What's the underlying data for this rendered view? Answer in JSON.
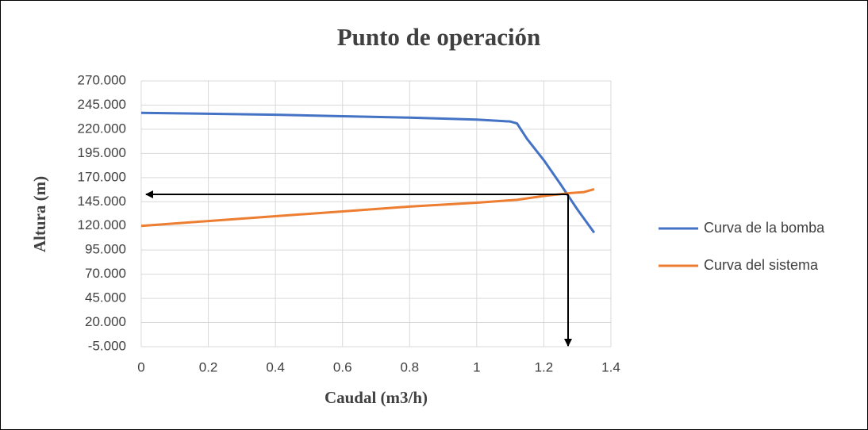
{
  "chart_data": {
    "type": "line",
    "title": "Punto de operación",
    "xlabel": "Caudal (m3/h)",
    "ylabel": "Altura (m)",
    "xlim": [
      0,
      1.4
    ],
    "xticks": [
      0,
      0.2,
      0.4,
      0.6,
      0.8,
      1,
      1.2,
      1.4
    ],
    "ylim": [
      -5,
      270
    ],
    "yticks": [
      {
        "value": -5,
        "label": "-5.000"
      },
      {
        "value": 20,
        "label": "20.000"
      },
      {
        "value": 45,
        "label": "45.000"
      },
      {
        "value": 70,
        "label": "70.000"
      },
      {
        "value": 95,
        "label": "95.000"
      },
      {
        "value": 120,
        "label": "120.000"
      },
      {
        "value": 145,
        "label": "145.000"
      },
      {
        "value": 170,
        "label": "170.000"
      },
      {
        "value": 195,
        "label": "195.000"
      },
      {
        "value": 220,
        "label": "220.000"
      },
      {
        "value": 245,
        "label": "245.000"
      },
      {
        "value": 270,
        "label": "270.000"
      }
    ],
    "grid": true,
    "legend": "right",
    "series": [
      {
        "name": "Curva de la bomba",
        "color": "#4472c4",
        "x": [
          0,
          0.2,
          0.4,
          0.6,
          0.8,
          1.0,
          1.1,
          1.12,
          1.15,
          1.2,
          1.25,
          1.3,
          1.35
        ],
        "values": [
          237,
          236,
          235,
          233.5,
          232,
          230,
          228,
          226,
          210,
          188,
          163,
          137,
          113
        ]
      },
      {
        "name": "Curva del sistema",
        "color": "#ed7d31",
        "x": [
          0,
          0.2,
          0.4,
          0.6,
          0.8,
          1.0,
          1.12,
          1.2,
          1.28,
          1.32,
          1.35
        ],
        "values": [
          120,
          125,
          130,
          135,
          140,
          144,
          147,
          151,
          154,
          155,
          158
        ]
      }
    ]
  }
}
